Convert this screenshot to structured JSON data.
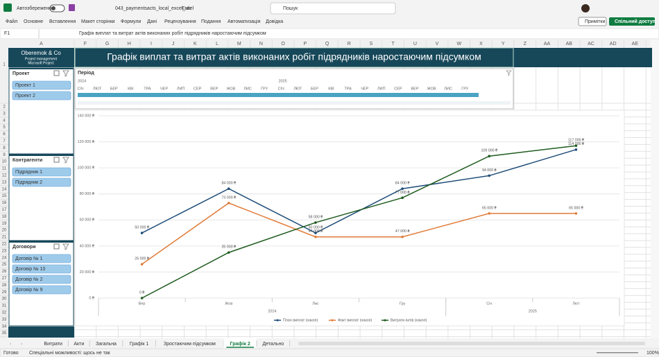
{
  "window": {
    "autosave": "Автозбереження",
    "filename": "043_paymentsacts_local_excel_uk",
    "app": "Excel",
    "search": "Пошук",
    "comments": "Примітки",
    "share": "Спільний доступ"
  },
  "ribbon": [
    "Файл",
    "Основне",
    "Вставлення",
    "Макет сторінки",
    "Формули",
    "Дані",
    "Рецензування",
    "Подання",
    "Автоматизація",
    "Довідка"
  ],
  "formula_bar": {
    "cell": "F1",
    "formula": "Графік виплат та витрат актів виконаних робіт підрядників наростаючим підсумком"
  },
  "columns": [
    "A",
    "F",
    "G",
    "H",
    "I",
    "J",
    "K",
    "L",
    "M",
    "N",
    "O",
    "P",
    "Q",
    "R",
    "S",
    "T",
    "U",
    "V",
    "W",
    "X",
    "Y",
    "Z",
    "AA",
    "AB",
    "AC",
    "AD",
    "AE"
  ],
  "rows": [
    "1",
    "2",
    "3",
    "4",
    "5",
    "6",
    "7",
    "8",
    "9",
    "10",
    "11",
    "12",
    "13",
    "14",
    "15",
    "16",
    "17",
    "18",
    "19",
    "20",
    "21",
    "22",
    "23",
    "24",
    "25",
    "26",
    "27",
    "28",
    "29",
    "30",
    "31",
    "32",
    "33",
    "34",
    "35"
  ],
  "panel": {
    "company": "Oberemok & Co",
    "line1": "Project management",
    "line2": "Microsoft Project"
  },
  "slicers": [
    {
      "title": "Проект",
      "items": [
        "Проект 1",
        "Проект 2"
      ]
    },
    {
      "title": "Контрагенти",
      "items": [
        "Підрядник 1",
        "Підрядник 2"
      ]
    },
    {
      "title": "Договори",
      "items": [
        "Договір № 1",
        "Договір № 10",
        "Договір № 2",
        "Договір № 9"
      ]
    }
  ],
  "dashboard_title": "Графік виплат та витрат актів виконаних робіт підрядників наростаючим підсумком",
  "timeline": {
    "title": "Період",
    "years": [
      "2024",
      "2025"
    ],
    "months": [
      "СІЧ",
      "ЛЮТ",
      "БЕР",
      "КВІ",
      "ТРА",
      "ЧЕР",
      "ЛИП",
      "СЕР",
      "ВЕР",
      "ЖОВ",
      "ЛИС",
      "ГРУ",
      "СІЧ",
      "ЛЮТ",
      "БЕР",
      "КВІ",
      "ТРА",
      "ЧЕР",
      "ЛИП",
      "СЕР",
      "ВЕР",
      "ЖОВ",
      "ЛИС",
      "ГРУ"
    ]
  },
  "chart_data": {
    "type": "line",
    "categories": [
      "Вер",
      "Жов",
      "Лис",
      "Гру",
      "Січ",
      "Лют"
    ],
    "category_groups": [
      {
        "label": "2024",
        "count": 4
      },
      {
        "label": "2025",
        "count": 2
      }
    ],
    "ylim": [
      0,
      140000
    ],
    "yticks": [
      {
        "value": 0,
        "label": "0 ₴"
      },
      {
        "value": 20000,
        "label": "20 000 ₴"
      },
      {
        "value": 40000,
        "label": "40 000 ₴"
      },
      {
        "value": 60000,
        "label": "60 000 ₴"
      },
      {
        "value": 80000,
        "label": "80 000 ₴"
      },
      {
        "value": 100000,
        "label": "100 000 ₴"
      },
      {
        "value": 120000,
        "label": "120 000 ₴"
      },
      {
        "value": 140000,
        "label": "140 000 ₴"
      }
    ],
    "grid": true,
    "legend": "bottom",
    "series": [
      {
        "name": "План виплат (накоп)",
        "color": "#1f4e79",
        "values": [
          50000,
          84000,
          50000,
          84000,
          94000,
          114000
        ],
        "value_labels": [
          "50 000 ₴",
          "84 000 ₴",
          "50 000 ₴",
          "84 000 ₴",
          "94 000 ₴",
          "114 000 ₴"
        ]
      },
      {
        "name": "Факт виплат (накоп)",
        "color": "#e07b39",
        "values": [
          26000,
          73000,
          47000,
          47000,
          65000,
          65000
        ],
        "value_labels": [
          "26 000 ₴",
          "73 000 ₴",
          "47 000 ₴",
          "47 000 ₴",
          "65 000 ₴",
          "65 000 ₴"
        ]
      },
      {
        "name": "Витрати актів (накоп)",
        "color": "#1e5b1e",
        "values": [
          0,
          35000,
          58000,
          77000,
          109000,
          117000
        ],
        "value_labels": [
          "0 ₴",
          "35 000 ₴",
          "58 000 ₴",
          "77 000 ₴",
          "109 000 ₴",
          "117 000 ₴"
        ]
      }
    ]
  },
  "sheet_tabs": [
    "Витрати",
    "Акти",
    "Загальна",
    "Графік 1",
    "Зростаючим підсумком",
    "Графік 2",
    "Детально"
  ],
  "active_tab": "Графік 2",
  "status": {
    "ready": "Готово",
    "accessibility": "Спеціальні можливості: щось не так",
    "zoom": "100%"
  }
}
